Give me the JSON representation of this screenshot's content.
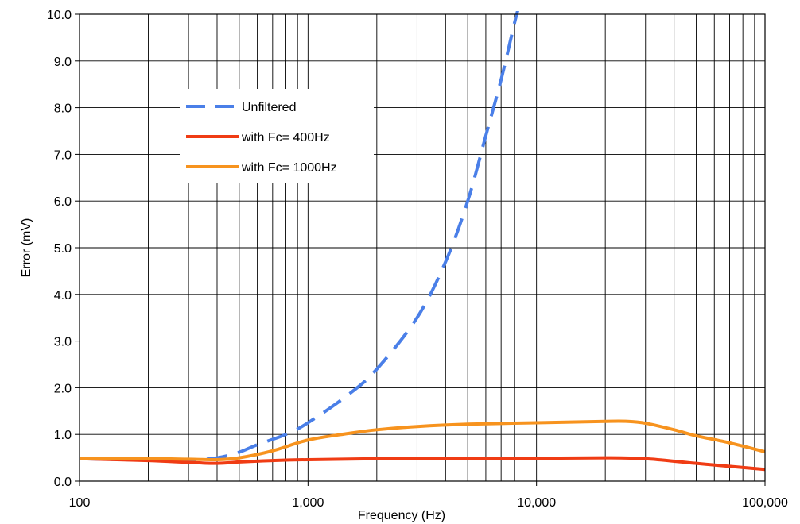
{
  "chart_data": {
    "type": "line",
    "xlabel": "Frequency (Hz)",
    "ylabel": "Error (mV)",
    "x_scale": "log",
    "xlim": [
      100,
      100000
    ],
    "ylim": [
      0,
      10
    ],
    "grid": true,
    "legend_position": "upper-left",
    "x_ticks": [
      {
        "value": 100,
        "label": "100"
      },
      {
        "value": 1000,
        "label": "1,000"
      },
      {
        "value": 10000,
        "label": "10,000"
      },
      {
        "value": 100000,
        "label": "100,000"
      }
    ],
    "y_ticks": [
      {
        "value": 0,
        "label": "0.0"
      },
      {
        "value": 1,
        "label": "1.0"
      },
      {
        "value": 2,
        "label": "2.0"
      },
      {
        "value": 3,
        "label": "3.0"
      },
      {
        "value": 4,
        "label": "4.0"
      },
      {
        "value": 5,
        "label": "5.0"
      },
      {
        "value": 6,
        "label": "6.0"
      },
      {
        "value": 7,
        "label": "7.0"
      },
      {
        "value": 8,
        "label": "8.0"
      },
      {
        "value": 9,
        "label": "9.0"
      },
      {
        "value": 10,
        "label": "10.0"
      }
    ],
    "series": [
      {
        "name": "Unfiltered",
        "color": "#4a7fe8",
        "style": "dashed",
        "x": [
          100,
          200,
          300,
          400,
          500,
          600,
          800,
          1000,
          1500,
          2000,
          3000,
          4000,
          5000,
          6000,
          7000,
          8000,
          8300
        ],
        "y": [
          0.48,
          0.45,
          0.45,
          0.5,
          0.62,
          0.78,
          1.0,
          1.25,
          1.85,
          2.4,
          3.5,
          4.7,
          6.0,
          7.4,
          8.6,
          9.8,
          10.1
        ]
      },
      {
        "name": "with Fc= 400Hz",
        "color": "#f03c14",
        "style": "solid",
        "x": [
          100,
          200,
          300,
          400,
          500,
          700,
          1000,
          2000,
          5000,
          10000,
          20000,
          30000,
          50000,
          100000
        ],
        "y": [
          0.48,
          0.44,
          0.4,
          0.38,
          0.41,
          0.44,
          0.46,
          0.48,
          0.49,
          0.49,
          0.5,
          0.48,
          0.38,
          0.25
        ]
      },
      {
        "name": "with Fc= 1000Hz",
        "color": "#f7931e",
        "style": "solid",
        "x": [
          100,
          200,
          300,
          400,
          500,
          700,
          1000,
          1500,
          2000,
          3000,
          5000,
          10000,
          20000,
          25000,
          30000,
          40000,
          50000,
          70000,
          100000
        ],
        "y": [
          0.48,
          0.48,
          0.47,
          0.46,
          0.5,
          0.65,
          0.88,
          1.02,
          1.1,
          1.17,
          1.22,
          1.25,
          1.28,
          1.28,
          1.24,
          1.1,
          0.97,
          0.82,
          0.63
        ]
      }
    ]
  }
}
